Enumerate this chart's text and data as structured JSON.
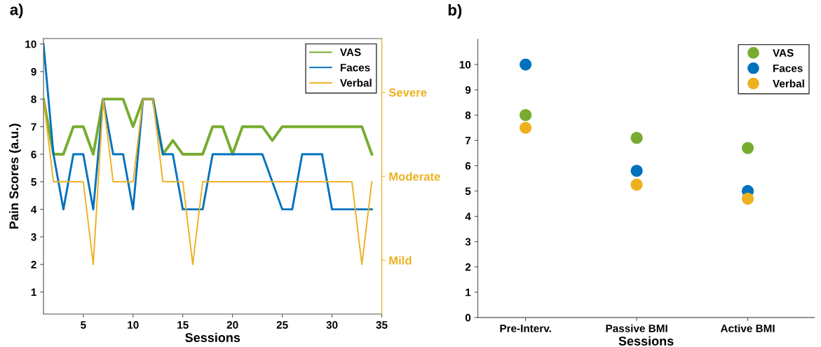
{
  "chart_data": [
    {
      "type": "line",
      "title": "a)",
      "xlabel": "Sessions",
      "ylabel": "Pain Scores (a.u.)",
      "x": [
        1,
        2,
        3,
        4,
        5,
        6,
        7,
        8,
        9,
        10,
        11,
        12,
        13,
        14,
        15,
        16,
        17,
        18,
        19,
        20,
        21,
        22,
        23,
        24,
        25,
        26,
        27,
        28,
        29,
        30,
        31,
        32,
        33,
        34
      ],
      "series": [
        {
          "name": "VAS",
          "color": "#77ac30",
          "values": [
            8,
            6,
            6,
            7,
            7,
            6,
            8,
            8,
            8,
            7,
            8,
            8,
            6,
            6.5,
            6,
            6,
            6,
            7,
            7,
            6,
            7,
            7,
            7,
            6.5,
            7,
            7,
            7,
            7,
            7,
            7,
            7,
            7,
            7,
            6
          ]
        },
        {
          "name": "Faces",
          "color": "#0072bd",
          "values": [
            10,
            6,
            4,
            6,
            6,
            4,
            8,
            6,
            6,
            4,
            8,
            8,
            6,
            6,
            4,
            4,
            4,
            6,
            6,
            6,
            6,
            6,
            6,
            5,
            4,
            4,
            6,
            6,
            6,
            4,
            4,
            4,
            4,
            4
          ]
        },
        {
          "name": "Verbal",
          "color": "#edb120",
          "values": [
            8,
            5,
            5,
            5,
            5,
            2,
            8,
            5,
            5,
            5,
            8,
            8,
            5,
            5,
            5,
            2,
            5,
            5,
            5,
            5,
            5,
            5,
            5,
            5,
            5,
            5,
            5,
            5,
            5,
            5,
            5,
            5,
            2,
            5
          ]
        }
      ],
      "xlim": [
        1,
        35
      ],
      "xticks": [
        5,
        10,
        15,
        20,
        25,
        30,
        35
      ],
      "ylim": [
        0.2,
        10.2
      ],
      "yticks": [
        1,
        2,
        3,
        4,
        5,
        6,
        7,
        8,
        9,
        10
      ],
      "y2_categories": [
        "Severe",
        "Moderate",
        "Mild"
      ],
      "legend": "top right",
      "grid": false,
      "marker": "none",
      "line_style": "solid"
    },
    {
      "type": "scatter",
      "title": "b)",
      "xlabel": "Sessions",
      "categories": [
        "Pre-Interv.",
        "Passive BMI",
        "Active BMI"
      ],
      "series": [
        {
          "name": "VAS",
          "color": "#77ac30",
          "values": [
            8,
            7.1,
            6.7
          ]
        },
        {
          "name": "Faces",
          "color": "#0072bd",
          "values": [
            10,
            5.8,
            5.0
          ]
        },
        {
          "name": "Verbal",
          "color": "#edb120",
          "values": [
            7.5,
            5.25,
            4.7
          ]
        }
      ],
      "ylim": [
        0,
        11
      ],
      "yticks": [
        0,
        1,
        2,
        3,
        4,
        5,
        6,
        7,
        8,
        9,
        10
      ],
      "legend": "top right",
      "grid": false,
      "marker": "circle"
    }
  ]
}
